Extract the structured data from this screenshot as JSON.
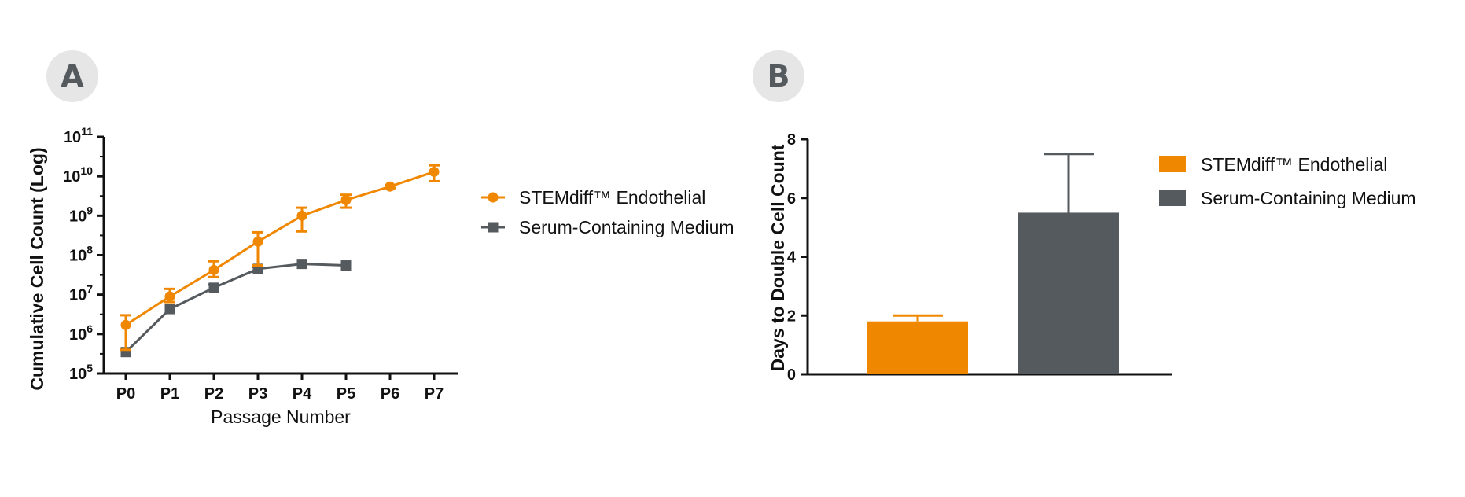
{
  "panels": {
    "a_label": "A",
    "b_label": "B"
  },
  "colors": {
    "stemdiff": "#f08700",
    "serum": "#555a5e",
    "axis": "#111111"
  },
  "chart_data": [
    {
      "type": "line",
      "panel": "A",
      "xlabel": "Passage Number",
      "ylabel": "Cumulative Cell Count (Log)",
      "yscale": "log",
      "ylim": [
        100000,
        100000000000
      ],
      "yticks": [
        {
          "base": "10",
          "exp": "5"
        },
        {
          "base": "10",
          "exp": "6"
        },
        {
          "base": "10",
          "exp": "7"
        },
        {
          "base": "10",
          "exp": "8"
        },
        {
          "base": "10",
          "exp": "9"
        },
        {
          "base": "10",
          "exp": "10"
        },
        {
          "base": "10",
          "exp": "11"
        }
      ],
      "categories": [
        "P0",
        "P1",
        "P2",
        "P3",
        "P4",
        "P5",
        "P6",
        "P7"
      ],
      "legend_position": "right",
      "series": [
        {
          "name": "STEMdiff™ Endothelial",
          "marker": "circle",
          "color": "#f08700",
          "values": [
            1700000,
            9000000,
            42000000,
            220000000,
            1000000000,
            2500000000,
            5500000000,
            13000000000
          ],
          "err_high": [
            3000000,
            14000000,
            70000000,
            380000000,
            1600000000,
            3400000000,
            6000000000,
            19000000000
          ],
          "err_low": [
            400000,
            6500000,
            28000000,
            55000000,
            400000000,
            1600000000,
            5000000000,
            7500000000
          ]
        },
        {
          "name": "Serum-Containing Medium",
          "marker": "square",
          "color": "#555a5e",
          "values": [
            350000,
            4300000,
            15000000,
            45000000,
            60000000,
            55000000,
            null,
            null
          ],
          "err_high": [
            350000,
            4300000,
            18000000,
            50000000,
            60000000,
            55000000,
            null,
            null
          ],
          "err_low": [
            350000,
            4300000,
            13000000,
            38000000,
            60000000,
            55000000,
            null,
            null
          ]
        }
      ]
    },
    {
      "type": "bar",
      "panel": "B",
      "xlabel": "",
      "ylabel": "Days to Double Cell Count",
      "ylim": [
        0,
        8
      ],
      "yticks": [
        "0",
        "2",
        "4",
        "6",
        "8"
      ],
      "legend_position": "right",
      "series": [
        {
          "name": "STEMdiff™ Endothelial",
          "color": "#f08700",
          "value": 1.8,
          "err_high": 2.0
        },
        {
          "name": "Serum-Containing Medium",
          "color": "#555a5e",
          "value": 5.5,
          "err_high": 7.5
        }
      ]
    }
  ]
}
